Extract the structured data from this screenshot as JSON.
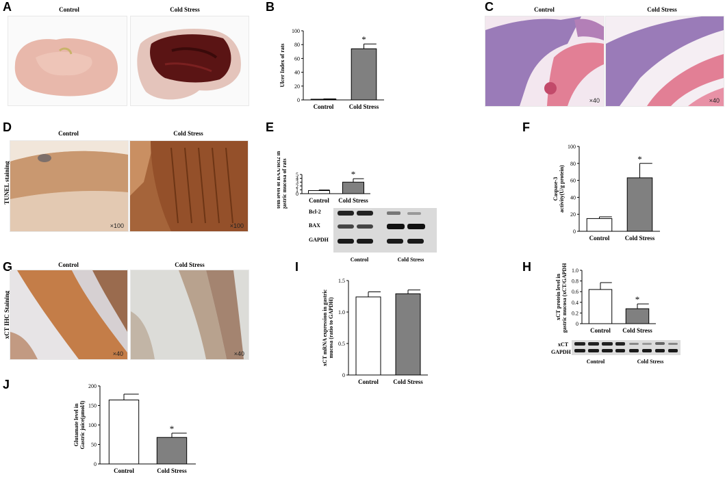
{
  "panels": {
    "A": {
      "letter": "A",
      "left_caption": "Control",
      "right_caption": "Cold Stress"
    },
    "B": {
      "letter": "B"
    },
    "C": {
      "letter": "C",
      "left_caption": "Control",
      "right_caption": "Cold Stress",
      "left_mag": "×40",
      "right_mag": "×40"
    },
    "D": {
      "letter": "D",
      "left_caption": "Control",
      "right_caption": "Cold Stress",
      "side_label": "TUNEL staining",
      "left_mag": "×100",
      "right_mag": "×100"
    },
    "E": {
      "letter": "E",
      "blot_rows": [
        "Bcl-2",
        "BAX",
        "GAPDH"
      ],
      "blot_groups": [
        "Control",
        "Cold Stress"
      ]
    },
    "F": {
      "letter": "F"
    },
    "G": {
      "letter": "G",
      "left_caption": "Control",
      "right_caption": "Cold Stress",
      "side_label": "xCT IHC Staining",
      "left_mag": "×40",
      "right_mag": "×40"
    },
    "I": {
      "letter": "I"
    },
    "H": {
      "letter": "H",
      "blot_rows": [
        "xCT",
        "GAPDH"
      ],
      "blot_groups": [
        "Control",
        "Cold Stress"
      ]
    },
    "J": {
      "letter": "J"
    }
  },
  "chart_data": [
    {
      "id": "B",
      "type": "bar",
      "categories": [
        "Control",
        "Cold Stress"
      ],
      "values": [
        1,
        74
      ],
      "errors": [
        0.5,
        7
      ],
      "ylabel": "Ulcer Index of rats",
      "ylim": [
        0,
        100
      ],
      "yticks": [
        0,
        20,
        40,
        60,
        80,
        100
      ],
      "star": "*"
    },
    {
      "id": "E",
      "type": "bar",
      "categories": [
        "Control",
        "Cold Stress"
      ],
      "values": [
        0.8,
        3.0
      ],
      "errors": [
        0.15,
        0.9
      ],
      "ylabel": "Protein level of BAX/Bcl2 in gastric mucosa of rats",
      "ylim": [
        0,
        5
      ],
      "yticks": [
        0,
        1,
        2,
        3,
        4,
        5
      ],
      "star": "*"
    },
    {
      "id": "F",
      "type": "bar",
      "categories": [
        "Control",
        "Cold Stress"
      ],
      "values": [
        15,
        63
      ],
      "errors": [
        2,
        17
      ],
      "ylabel": "Caspase-3 activity(U/g protein)",
      "ylim": [
        0,
        100
      ],
      "yticks": [
        0,
        20,
        40,
        60,
        80,
        100
      ],
      "star": "*"
    },
    {
      "id": "I",
      "type": "bar",
      "categories": [
        "Control",
        "Cold Stress"
      ],
      "values": [
        1.24,
        1.29
      ],
      "errors": [
        0.08,
        0.06
      ],
      "ylabel": "xCT mRNA expression in gastric mucosa (ratio to GAPDH)",
      "ylim": [
        0,
        1.5
      ],
      "yticks": [
        0,
        0.5,
        1.0,
        1.5
      ],
      "star": ""
    },
    {
      "id": "H",
      "type": "bar",
      "categories": [
        "Control",
        "Cold Stress"
      ],
      "values": [
        0.64,
        0.28
      ],
      "errors": [
        0.13,
        0.09
      ],
      "ylabel": "xCT protein level in gastric mucosa (xCT/GAPDH)",
      "ylim": [
        0,
        1.0
      ],
      "yticks": [
        0,
        0.2,
        0.4,
        0.6,
        0.8,
        1.0
      ],
      "star": "*"
    },
    {
      "id": "J",
      "type": "bar",
      "categories": [
        "Control",
        "Cold Stress"
      ],
      "values": [
        164,
        68
      ],
      "errors": [
        15,
        11
      ],
      "ylabel": "Glutamate level in Gastric juice(μmol/l)",
      "ylim": [
        0,
        200
      ],
      "yticks": [
        0,
        50,
        100,
        150,
        200
      ],
      "star": "*"
    }
  ],
  "colors": {
    "control_bar": "#ffffff",
    "stress_bar": "#808080",
    "axis": "#000000",
    "stomach_control": "#e8b8ab",
    "stomach_stress": "#5a1414",
    "he_purple": "#9a7bb8",
    "he_pink": "#e27f95",
    "ihc_brown": "#a5643a",
    "ihc_light": "#d9b08c"
  }
}
